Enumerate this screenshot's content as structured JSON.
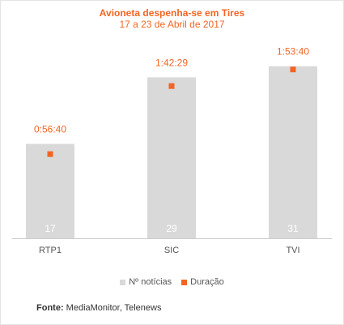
{
  "chart_data": {
    "type": "bar",
    "title": "Avioneta despenha-se em Tires",
    "subtitle": "17 a 23 de Abril de 2017",
    "categories": [
      "RTP1",
      "SIC",
      "TVI"
    ],
    "series": [
      {
        "name": "Nº notícias",
        "values": [
          17,
          29,
          31
        ],
        "color": "#d9d9d9"
      },
      {
        "name": "Duração",
        "values": [
          "0:56:40",
          "1:42:29",
          "1:53:40"
        ],
        "values_seconds": [
          3400,
          6149,
          6820
        ],
        "color": "#f26522"
      }
    ],
    "ylim": [
      0,
      33
    ],
    "legend": "bottom-center",
    "grid": false
  },
  "footer": {
    "label": "Fonte:",
    "text": "MediaMonitor, Telenews"
  }
}
